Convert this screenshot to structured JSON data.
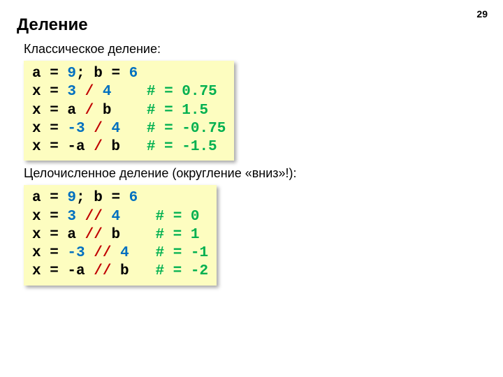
{
  "page_number": "29",
  "title": "Деление",
  "sections": [
    {
      "subtitle": "Классическое деление:",
      "code": [
        [
          {
            "t": "a = ",
            "c": "plain"
          },
          {
            "t": "9",
            "c": "num"
          },
          {
            "t": "; b = ",
            "c": "plain"
          },
          {
            "t": "6",
            "c": "num"
          }
        ],
        [
          {
            "t": "x = ",
            "c": "plain"
          },
          {
            "t": "3",
            "c": "num"
          },
          {
            "t": " ",
            "c": "plain"
          },
          {
            "t": "/",
            "c": "op"
          },
          {
            "t": " ",
            "c": "plain"
          },
          {
            "t": "4",
            "c": "num"
          },
          {
            "t": "    ",
            "c": "plain"
          },
          {
            "t": "# = 0.75",
            "c": "cmt"
          }
        ],
        [
          {
            "t": "x = a ",
            "c": "plain"
          },
          {
            "t": "/",
            "c": "op"
          },
          {
            "t": " b    ",
            "c": "plain"
          },
          {
            "t": "# = 1.5",
            "c": "cmt"
          }
        ],
        [
          {
            "t": "x = ",
            "c": "plain"
          },
          {
            "t": "-3",
            "c": "num"
          },
          {
            "t": " ",
            "c": "plain"
          },
          {
            "t": "/",
            "c": "op"
          },
          {
            "t": " ",
            "c": "plain"
          },
          {
            "t": "4",
            "c": "num"
          },
          {
            "t": "   ",
            "c": "plain"
          },
          {
            "t": "# = -0.75",
            "c": "cmt"
          }
        ],
        [
          {
            "t": "x = -a ",
            "c": "plain"
          },
          {
            "t": "/",
            "c": "op"
          },
          {
            "t": " b   ",
            "c": "plain"
          },
          {
            "t": "# = -1.5",
            "c": "cmt"
          }
        ]
      ]
    },
    {
      "subtitle": "Целочисленное деление (округление «вниз»!):",
      "code": [
        [
          {
            "t": "a = ",
            "c": "plain"
          },
          {
            "t": "9",
            "c": "num"
          },
          {
            "t": "; b = ",
            "c": "plain"
          },
          {
            "t": "6",
            "c": "num"
          }
        ],
        [
          {
            "t": "x = ",
            "c": "plain"
          },
          {
            "t": "3",
            "c": "num"
          },
          {
            "t": " ",
            "c": "plain"
          },
          {
            "t": "//",
            "c": "op"
          },
          {
            "t": " ",
            "c": "plain"
          },
          {
            "t": "4",
            "c": "num"
          },
          {
            "t": "    ",
            "c": "plain"
          },
          {
            "t": "# = 0",
            "c": "cmt"
          }
        ],
        [
          {
            "t": "x = a ",
            "c": "plain"
          },
          {
            "t": "//",
            "c": "op"
          },
          {
            "t": " b    ",
            "c": "plain"
          },
          {
            "t": "# = 1",
            "c": "cmt"
          }
        ],
        [
          {
            "t": "x = ",
            "c": "plain"
          },
          {
            "t": "-3",
            "c": "num"
          },
          {
            "t": " ",
            "c": "plain"
          },
          {
            "t": "//",
            "c": "op"
          },
          {
            "t": " ",
            "c": "plain"
          },
          {
            "t": "4",
            "c": "num"
          },
          {
            "t": "   ",
            "c": "plain"
          },
          {
            "t": "# = -1",
            "c": "cmt"
          }
        ],
        [
          {
            "t": "x = -a ",
            "c": "plain"
          },
          {
            "t": "//",
            "c": "op"
          },
          {
            "t": " b   ",
            "c": "plain"
          },
          {
            "t": "# = -2",
            "c": "cmt"
          }
        ]
      ]
    }
  ],
  "colors": {
    "number": "#0070c0",
    "operator": "#c00000",
    "comment": "#00b050",
    "code_bg": "#fdfdc0",
    "text": "#000000"
  }
}
